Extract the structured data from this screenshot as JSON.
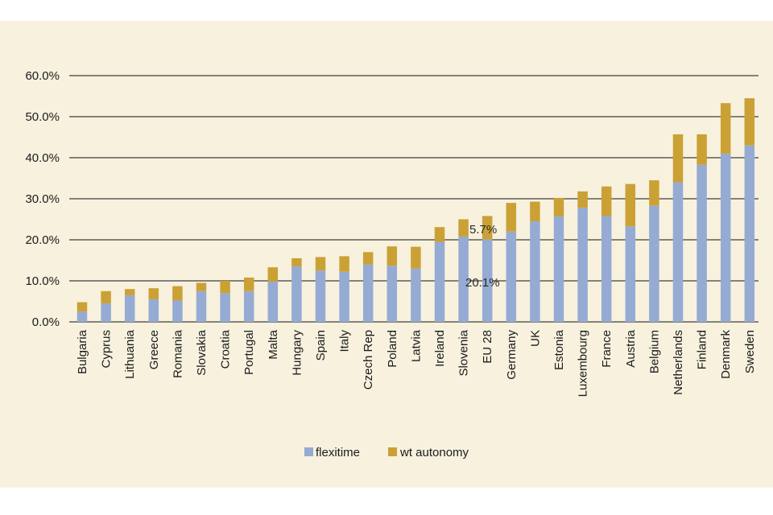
{
  "chart_data": {
    "type": "bar",
    "stacked": true,
    "title": "",
    "xlabel": "",
    "ylabel": "",
    "ylim": [
      0,
      60
    ],
    "yticks": [
      "0.0%",
      "10.0%",
      "20.0%",
      "30.0%",
      "40.0%",
      "50.0%",
      "60.0%"
    ],
    "grid": true,
    "legend_position": "bottom",
    "colors": {
      "flexitime": "#95abd3",
      "wt_autonomy": "#cba135",
      "background": "#f7f1de",
      "grid": "#111111"
    },
    "categories": [
      "Bulgaria",
      "Cyprus",
      "Lithuania",
      "Greece",
      "Romania",
      "Slovakia",
      "Croatia",
      "Portugal",
      "Malta",
      "Hungary",
      "Spain",
      "Italy",
      "Czech Rep",
      "Poland",
      "Latvia",
      "Ireland",
      "Slovenia",
      "EU 28",
      "Germany",
      "UK",
      "Estonia",
      "Luxembourg",
      "France",
      "Austria",
      "Belgium",
      "Netherlands",
      "Finland",
      "Denmark",
      "Sweden"
    ],
    "series": [
      {
        "name": "flexitime",
        "values": [
          2.5,
          4.5,
          6.5,
          5.5,
          5.2,
          7.5,
          7.0,
          7.5,
          9.8,
          13.5,
          12.5,
          12.2,
          14.0,
          13.7,
          13.0,
          19.5,
          20.8,
          20.1,
          22.0,
          24.5,
          25.7,
          27.8,
          25.8,
          23.3,
          28.3,
          34.0,
          38.3,
          41.0,
          43.0
        ]
      },
      {
        "name": "wt autonomy",
        "values": [
          2.3,
          3.0,
          1.5,
          2.7,
          3.5,
          2.0,
          3.0,
          3.3,
          3.5,
          2.0,
          3.3,
          3.8,
          3.0,
          4.7,
          5.3,
          3.6,
          4.2,
          5.7,
          7.0,
          4.8,
          4.5,
          4.0,
          7.2,
          10.3,
          6.2,
          11.7,
          7.4,
          12.3,
          11.5
        ]
      }
    ],
    "annotations": [
      "5.7%",
      "20.1%"
    ],
    "legend": [
      "flexitime",
      "wt autonomy"
    ]
  }
}
